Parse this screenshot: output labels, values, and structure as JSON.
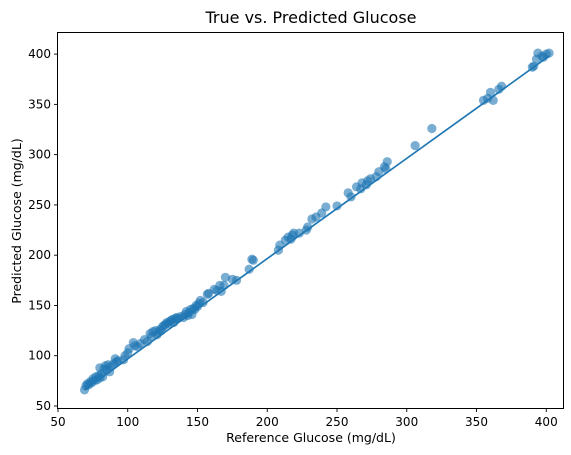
{
  "chart_data": {
    "type": "scatter",
    "title": "True vs. Predicted Glucose",
    "xlabel": "Reference Glucose (mg/dL)",
    "ylabel": "Predicted Glucose (mg/dL)",
    "xlim": [
      50,
      412
    ],
    "ylim": [
      48,
      421
    ],
    "xticks": [
      50,
      100,
      150,
      200,
      250,
      300,
      350,
      400
    ],
    "yticks": [
      50,
      100,
      150,
      200,
      250,
      300,
      350,
      400
    ],
    "grid": false,
    "colors": {
      "marker": "#1f77b4",
      "line": "#1f77b4"
    },
    "marker_alpha": 0.6,
    "fit_line": {
      "x": [
        69,
        402
      ],
      "y": [
        66,
        398
      ]
    },
    "points": [
      [
        69,
        66
      ],
      [
        70,
        70
      ],
      [
        71,
        72
      ],
      [
        72,
        71
      ],
      [
        73,
        74
      ],
      [
        74,
        73
      ],
      [
        75,
        77
      ],
      [
        76,
        75
      ],
      [
        77,
        79
      ],
      [
        78,
        76
      ],
      [
        79,
        80
      ],
      [
        80,
        78
      ],
      [
        80,
        88
      ],
      [
        81,
        82
      ],
      [
        82,
        79
      ],
      [
        83,
        87
      ],
      [
        84,
        90
      ],
      [
        85,
        86
      ],
      [
        86,
        91
      ],
      [
        87,
        84
      ],
      [
        88,
        89
      ],
      [
        90,
        92
      ],
      [
        91,
        97
      ],
      [
        92,
        94
      ],
      [
        93,
        95
      ],
      [
        97,
        96
      ],
      [
        98,
        100
      ],
      [
        100,
        103
      ],
      [
        101,
        107
      ],
      [
        104,
        113
      ],
      [
        105,
        110
      ],
      [
        107,
        109
      ],
      [
        109,
        112
      ],
      [
        112,
        116
      ],
      [
        114,
        114
      ],
      [
        116,
        122
      ],
      [
        117,
        119
      ],
      [
        118,
        124
      ],
      [
        120,
        125
      ],
      [
        121,
        121
      ],
      [
        122,
        123
      ],
      [
        123,
        126
      ],
      [
        124,
        125
      ],
      [
        125,
        129
      ],
      [
        126,
        130
      ],
      [
        127,
        131
      ],
      [
        128,
        133
      ],
      [
        129,
        132
      ],
      [
        130,
        134
      ],
      [
        131,
        135
      ],
      [
        132,
        136
      ],
      [
        133,
        133
      ],
      [
        134,
        137
      ],
      [
        135,
        138
      ],
      [
        136,
        137
      ],
      [
        138,
        139
      ],
      [
        140,
        138
      ],
      [
        141,
        141
      ],
      [
        142,
        144
      ],
      [
        143,
        140
      ],
      [
        144,
        143
      ],
      [
        145,
        146
      ],
      [
        146,
        141
      ],
      [
        147,
        147
      ],
      [
        148,
        146
      ],
      [
        149,
        150
      ],
      [
        150,
        149
      ],
      [
        151,
        152
      ],
      [
        152,
        155
      ],
      [
        154,
        153
      ],
      [
        157,
        161
      ],
      [
        158,
        162
      ],
      [
        162,
        166
      ],
      [
        164,
        165
      ],
      [
        166,
        170
      ],
      [
        167,
        164
      ],
      [
        169,
        170
      ],
      [
        170,
        178
      ],
      [
        175,
        176
      ],
      [
        178,
        175
      ],
      [
        187,
        186
      ],
      [
        189,
        196
      ],
      [
        190,
        195
      ],
      [
        208,
        205
      ],
      [
        209,
        210
      ],
      [
        213,
        215
      ],
      [
        215,
        218
      ],
      [
        217,
        216
      ],
      [
        218,
        220
      ],
      [
        219,
        222
      ],
      [
        223,
        222
      ],
      [
        228,
        225
      ],
      [
        229,
        228
      ],
      [
        232,
        236
      ],
      [
        235,
        238
      ],
      [
        239,
        242
      ],
      [
        242,
        248
      ],
      [
        250,
        249
      ],
      [
        258,
        262
      ],
      [
        260,
        258
      ],
      [
        264,
        268
      ],
      [
        267,
        266
      ],
      [
        268,
        272
      ],
      [
        271,
        270
      ],
      [
        272,
        274
      ],
      [
        274,
        276
      ],
      [
        278,
        278
      ],
      [
        280,
        283
      ],
      [
        284,
        288
      ],
      [
        285,
        286
      ],
      [
        286,
        293
      ],
      [
        306,
        309
      ],
      [
        318,
        326
      ],
      [
        355,
        354
      ],
      [
        358,
        356
      ],
      [
        360,
        362
      ],
      [
        362,
        354
      ],
      [
        366,
        365
      ],
      [
        368,
        368
      ],
      [
        390,
        387
      ],
      [
        391,
        388
      ],
      [
        393,
        395
      ],
      [
        394,
        401
      ],
      [
        397,
        398
      ],
      [
        398,
        397
      ],
      [
        400,
        400
      ],
      [
        402,
        401
      ]
    ]
  }
}
